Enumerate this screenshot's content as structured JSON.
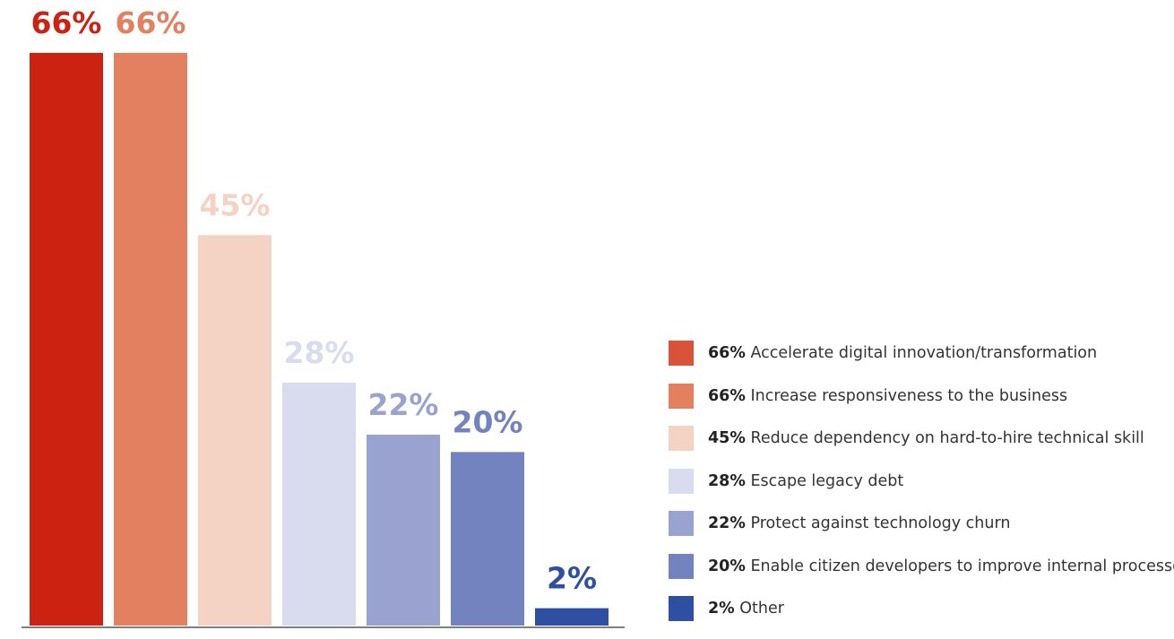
{
  "chart_data": {
    "type": "bar",
    "title": "",
    "xlabel": "",
    "ylabel": "",
    "ylim": [
      0,
      100
    ],
    "grid": false,
    "legend_position": "right",
    "categories": [
      "Accelerate digital innovation/transformation",
      "Increase responsiveness to the business",
      "Reduce dependency on hard-to-hire technical skill",
      "Escape legacy debt",
      "Protect against technology churn",
      "Enable citizen developers to improve internal processes",
      "Other"
    ],
    "values": [
      66,
      66,
      45,
      28,
      22,
      20,
      2
    ],
    "data_labels": [
      "66%",
      "66%",
      "45%",
      "28%",
      "22%",
      "20%",
      "2%"
    ],
    "bar_colors": [
      "#cc2212",
      "#e2805f",
      "#f5d3c4",
      "#d9dbef",
      "#9aa3d0",
      "#7383c0",
      "#2f50a2"
    ],
    "label_colors": [
      "#cc2212",
      "#e2805f",
      "#f5d3c4",
      "#d9dbef",
      "#9aa3d0",
      "#7383c0",
      "#2f50a2"
    ],
    "legend": [
      {
        "pct": "66%",
        "label": "Accelerate digital innovation/transformation",
        "color": "#d9533a"
      },
      {
        "pct": "66%",
        "label": "Increase responsiveness to the business",
        "color": "#e2805f"
      },
      {
        "pct": "45%",
        "label": "Reduce dependency on hard-to-hire technical skill",
        "color": "#f5d3c4"
      },
      {
        "pct": "28%",
        "label": "Escape legacy debt",
        "color": "#d9dbef"
      },
      {
        "pct": "22%",
        "label": "Protect against technology churn",
        "color": "#9aa3d0"
      },
      {
        "pct": "20%",
        "label": "Enable citizen developers to improve internal processes",
        "color": "#7383c0"
      },
      {
        "pct": "2%",
        "label": "Other",
        "color": "#2f50a2"
      }
    ]
  }
}
